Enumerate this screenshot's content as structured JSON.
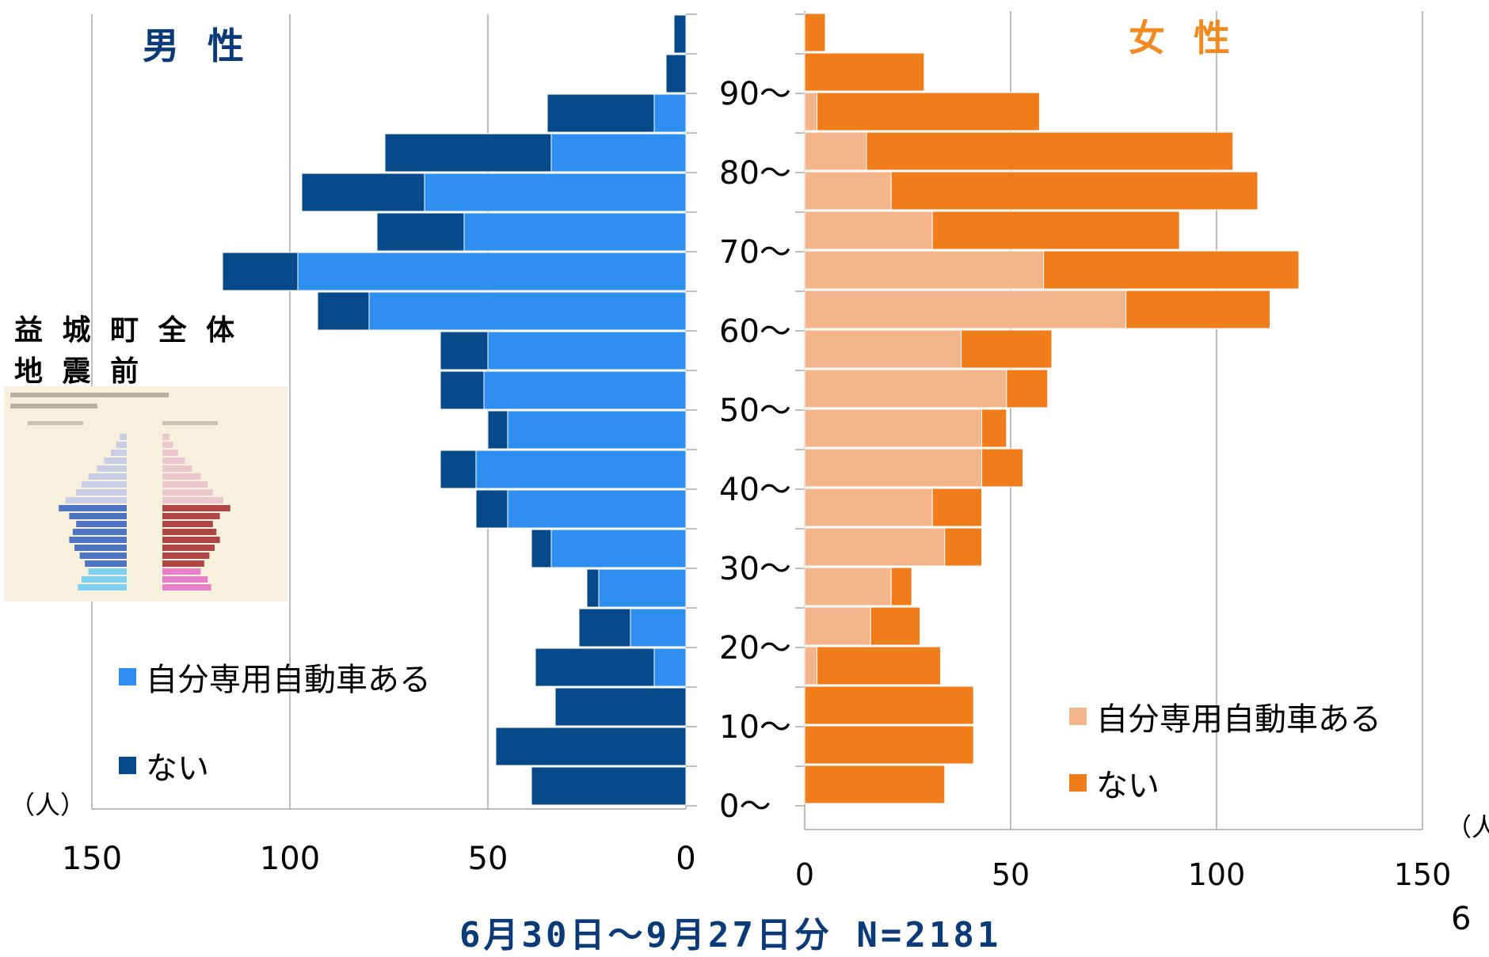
{
  "male_title": "男 性",
  "female_title": "女 性",
  "inset": {
    "title_line1": "益 城 町 全 体",
    "title_line2": "地 震 前"
  },
  "legend_male": {
    "has_car": "自分専用自動車ある",
    "no_car": "ない"
  },
  "legend_female": {
    "has_car": "自分専用自動車ある",
    "no_car": "ない"
  },
  "unit_left": "（人）",
  "unit_right": "（人）",
  "footer": "6月30日～9月27日分 N=2181",
  "page_number": "6",
  "colors": {
    "male_has": "#2e8ff0",
    "male_no": "#064a8c",
    "female_has": "#f5b58a",
    "female_no": "#f07c1a"
  },
  "chart_data": [
    {
      "type": "bar",
      "orientation": "horizontal",
      "title": "男 性",
      "categories": [
        "0～",
        "5～",
        "10～",
        "15～",
        "20～",
        "25～",
        "30～",
        "35～",
        "40～",
        "45～",
        "50～",
        "55～",
        "60～",
        "65～",
        "70～",
        "75～",
        "80～",
        "85～",
        "90～",
        "95～"
      ],
      "category_labels": [
        "0～",
        "10～",
        "20～",
        "30～",
        "40～",
        "50～",
        "60～",
        "70～",
        "80～",
        "90～"
      ],
      "series": [
        {
          "name": "自分専用自動車ある",
          "values": [
            0,
            0,
            0,
            8,
            14,
            22,
            34,
            45,
            53,
            45,
            51,
            50,
            80,
            98,
            56,
            66,
            34,
            8,
            0,
            0
          ]
        },
        {
          "name": "ない",
          "values": [
            39,
            48,
            33,
            30,
            13,
            3,
            5,
            8,
            9,
            5,
            11,
            12,
            13,
            19,
            22,
            31,
            42,
            27,
            5,
            3
          ]
        }
      ],
      "xlim": [
        150,
        0
      ],
      "xticks": [
        "150",
        "100",
        "50",
        "0"
      ],
      "stacked": true
    },
    {
      "type": "bar",
      "orientation": "horizontal",
      "title": "女 性",
      "categories": [
        "0～",
        "5～",
        "10～",
        "15～",
        "20～",
        "25～",
        "30～",
        "35～",
        "40～",
        "45～",
        "50～",
        "55～",
        "60～",
        "65～",
        "70～",
        "75～",
        "80～",
        "85～",
        "90～",
        "95～"
      ],
      "series": [
        {
          "name": "自分専用自動車ある",
          "values": [
            0,
            0,
            0,
            3,
            16,
            21,
            34,
            31,
            43,
            43,
            49,
            38,
            78,
            58,
            31,
            21,
            15,
            3,
            0,
            0
          ]
        },
        {
          "name": "ない",
          "values": [
            34,
            41,
            41,
            30,
            12,
            5,
            9,
            12,
            10,
            6,
            10,
            22,
            35,
            62,
            60,
            89,
            89,
            54,
            29,
            5
          ]
        }
      ],
      "xlim": [
        0,
        150
      ],
      "xticks": [
        "0",
        "50",
        "100",
        "150"
      ],
      "stacked": true
    }
  ]
}
